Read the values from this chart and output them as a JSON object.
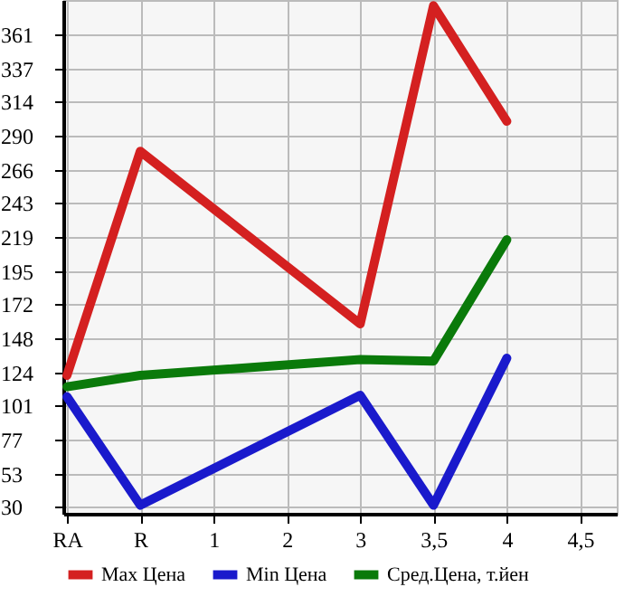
{
  "chart_data": {
    "type": "line",
    "categories": [
      "RA",
      "R",
      "1",
      "2",
      "3",
      "3,5",
      "4",
      "4,5"
    ],
    "series": [
      {
        "name": "Max Цена",
        "color": "#d42020",
        "values": [
          122,
          279,
          null,
          null,
          158,
          381,
          300,
          null
        ]
      },
      {
        "name": "Min Цена",
        "color": "#1a1acc",
        "values": [
          107,
          31,
          null,
          null,
          108,
          31,
          134,
          null
        ]
      },
      {
        "name": "Сред.Цена, т.йен",
        "color": "#0a7a0a",
        "values": [
          114,
          122,
          null,
          null,
          133,
          132,
          217,
          null
        ]
      }
    ],
    "ylim": [
      25,
      385
    ],
    "yticks": [
      30,
      53,
      77,
      101,
      124,
      148,
      172,
      195,
      219,
      243,
      266,
      290,
      314,
      337,
      361
    ],
    "grid": true,
    "legend": "bottom",
    "marker": "none",
    "line_style": "solid"
  }
}
